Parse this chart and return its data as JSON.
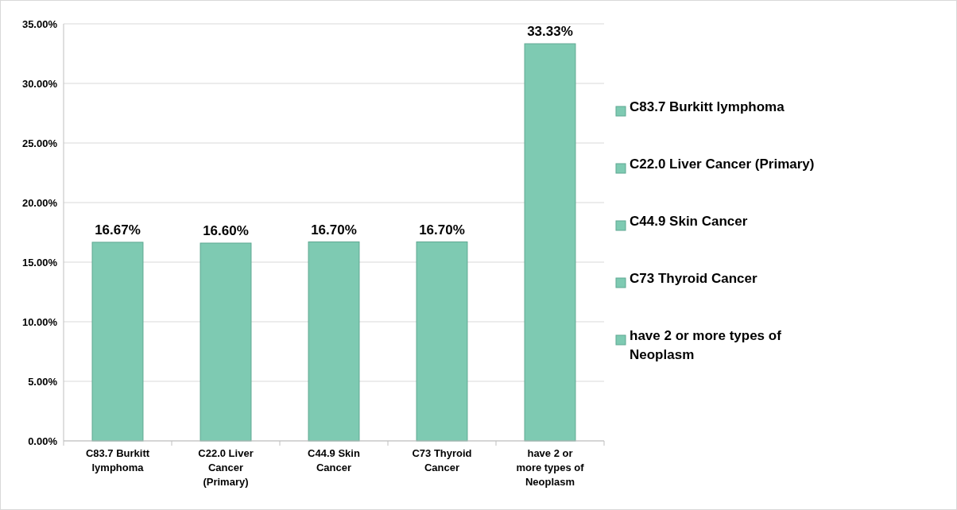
{
  "chart_data": {
    "type": "bar",
    "stacked": true,
    "categories": [
      "C83.7 Burkitt lymphoma",
      "C22.0 Liver Cancer (Primary)",
      "C44.9 Skin Cancer",
      "C73 Thyroid Cancer",
      "have 2 or more types of Neoplasm"
    ],
    "series": [
      {
        "name": "C83.7 Burkitt lymphoma",
        "color": "#7ecab2",
        "values": [
          16.67,
          null,
          null,
          null,
          null
        ],
        "value_labels": [
          "16.67%",
          null,
          null,
          null,
          null
        ]
      },
      {
        "name": "C22.0 Liver Cancer (Primary)",
        "color": "#7ecab2",
        "values": [
          null,
          16.6,
          null,
          null,
          null
        ],
        "value_labels": [
          null,
          "16.60%",
          null,
          null,
          null
        ]
      },
      {
        "name": "C44.9 Skin Cancer",
        "color": "#7ecab2",
        "values": [
          null,
          null,
          16.7,
          null,
          null
        ],
        "value_labels": [
          null,
          null,
          "16.70%",
          null,
          null
        ]
      },
      {
        "name": "C73 Thyroid Cancer",
        "color": "#7ecab2",
        "values": [
          null,
          null,
          null,
          16.7,
          null
        ],
        "value_labels": [
          null,
          null,
          null,
          "16.70%",
          null
        ]
      },
      {
        "name": "have 2 or more types of Neoplasm",
        "color": "#7ecab2",
        "values": [
          null,
          null,
          null,
          null,
          33.33
        ],
        "value_labels": [
          null,
          null,
          null,
          null,
          "33.33%"
        ]
      }
    ],
    "ylim": [
      0,
      35
    ],
    "yticks": [
      {
        "value": 0,
        "label": "0.00%"
      },
      {
        "value": 5,
        "label": "5.00%"
      },
      {
        "value": 10,
        "label": "10.00%"
      },
      {
        "value": 15,
        "label": "15.00%"
      },
      {
        "value": 20,
        "label": "20.00%"
      },
      {
        "value": 25,
        "label": "25.00%"
      },
      {
        "value": 30,
        "label": "30.00%"
      },
      {
        "value": 35,
        "label": "35.00%"
      }
    ],
    "grid": "y",
    "legend": "right"
  }
}
